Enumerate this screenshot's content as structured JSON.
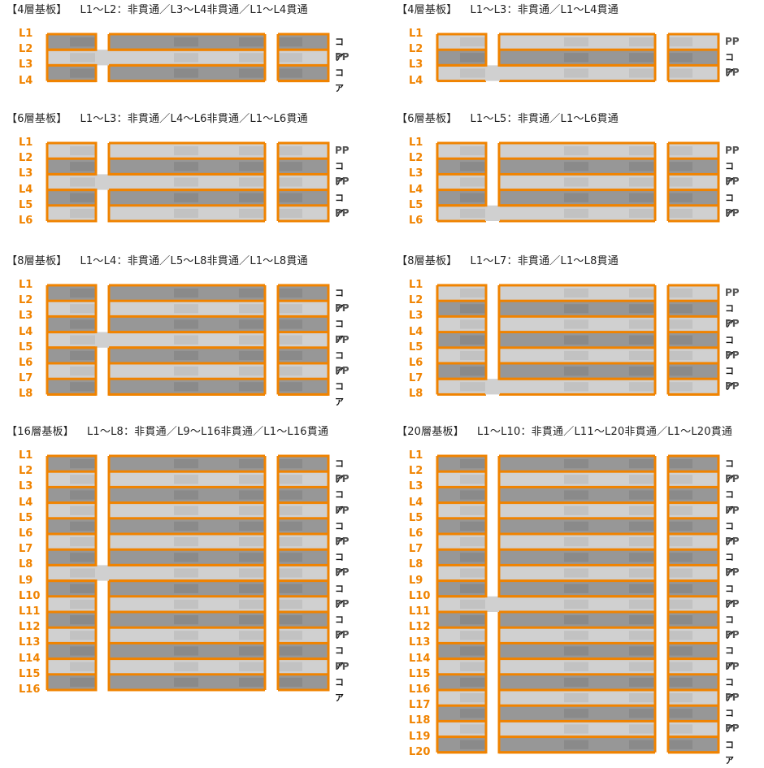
{
  "colors": {
    "copper": "#f08300",
    "core": "#979797",
    "core_shade": "#8a8a8a",
    "pp": "#d0d0d0",
    "pp_shade": "#c2c2c2",
    "label_layer": "#f08300",
    "label_core": "#111111",
    "label_pp": "#555555"
  },
  "materials": {
    "core": "コア",
    "pp": "PP"
  },
  "panels": [
    {
      "title": "【4層基板】",
      "spec": "L1～L2：非貫通／L3～L4非貫通／L1～L4貫通",
      "layers": [
        "L1",
        "L2",
        "L3",
        "L4"
      ],
      "materials": [
        "core",
        "pp",
        "core"
      ]
    },
    {
      "title": "【4層基板】",
      "spec": "L1～L3：非貫通／L1～L4貫通",
      "layers": [
        "L1",
        "L2",
        "L3",
        "L4"
      ],
      "materials": [
        "pp",
        "core",
        "pp"
      ]
    },
    {
      "title": "【6層基板】",
      "spec": "L1～L3：非貫通／L4～L6非貫通／L1～L6貫通",
      "layers": [
        "L1",
        "L2",
        "L3",
        "L4",
        "L5",
        "L6"
      ],
      "materials": [
        "pp",
        "core",
        "pp",
        "core",
        "pp"
      ]
    },
    {
      "title": "【6層基板】",
      "spec": "L1～L5：非貫通／L1～L6貫通",
      "layers": [
        "L1",
        "L2",
        "L3",
        "L4",
        "L5",
        "L6"
      ],
      "materials": [
        "pp",
        "core",
        "pp",
        "core",
        "pp"
      ]
    },
    {
      "title": "【8層基板】",
      "spec": "L1～L4：非貫通／L5～L8非貫通／L1～L8貫通",
      "layers": [
        "L1",
        "L2",
        "L3",
        "L4",
        "L5",
        "L6",
        "L7",
        "L8"
      ],
      "materials": [
        "core",
        "pp",
        "core",
        "pp",
        "core",
        "pp",
        "core"
      ]
    },
    {
      "title": "【8層基板】",
      "spec": "L1～L7：非貫通／L1～L8貫通",
      "layers": [
        "L1",
        "L2",
        "L3",
        "L4",
        "L5",
        "L6",
        "L7",
        "L8"
      ],
      "materials": [
        "pp",
        "core",
        "pp",
        "core",
        "pp",
        "core",
        "pp"
      ]
    },
    {
      "title": "【16層基板】",
      "spec": "L1～L8：非貫通／L9～L16非貫通／L1～L16貫通",
      "layers": [
        "L1",
        "L2",
        "L3",
        "L4",
        "L5",
        "L6",
        "L7",
        "L8",
        "L9",
        "L10",
        "L11",
        "L12",
        "L13",
        "L14",
        "L15",
        "L16"
      ],
      "materials": [
        "core",
        "pp",
        "core",
        "pp",
        "core",
        "pp",
        "core",
        "pp",
        "core",
        "pp",
        "core",
        "pp",
        "core",
        "pp",
        "core"
      ]
    },
    {
      "title": "【20層基板】",
      "spec": "L1～L10：非貫通／L11～L20非貫通／L1～L20貫通",
      "layers": [
        "L1",
        "L2",
        "L3",
        "L4",
        "L5",
        "L6",
        "L7",
        "L8",
        "L9",
        "L10",
        "L11",
        "L12",
        "L13",
        "L14",
        "L15",
        "L16",
        "L17",
        "L18",
        "L19",
        "L20"
      ],
      "materials": [
        "core",
        "pp",
        "core",
        "pp",
        "core",
        "pp",
        "core",
        "pp",
        "core",
        "pp",
        "core",
        "pp",
        "core",
        "pp",
        "core",
        "pp",
        "core",
        "pp",
        "core"
      ]
    }
  ]
}
